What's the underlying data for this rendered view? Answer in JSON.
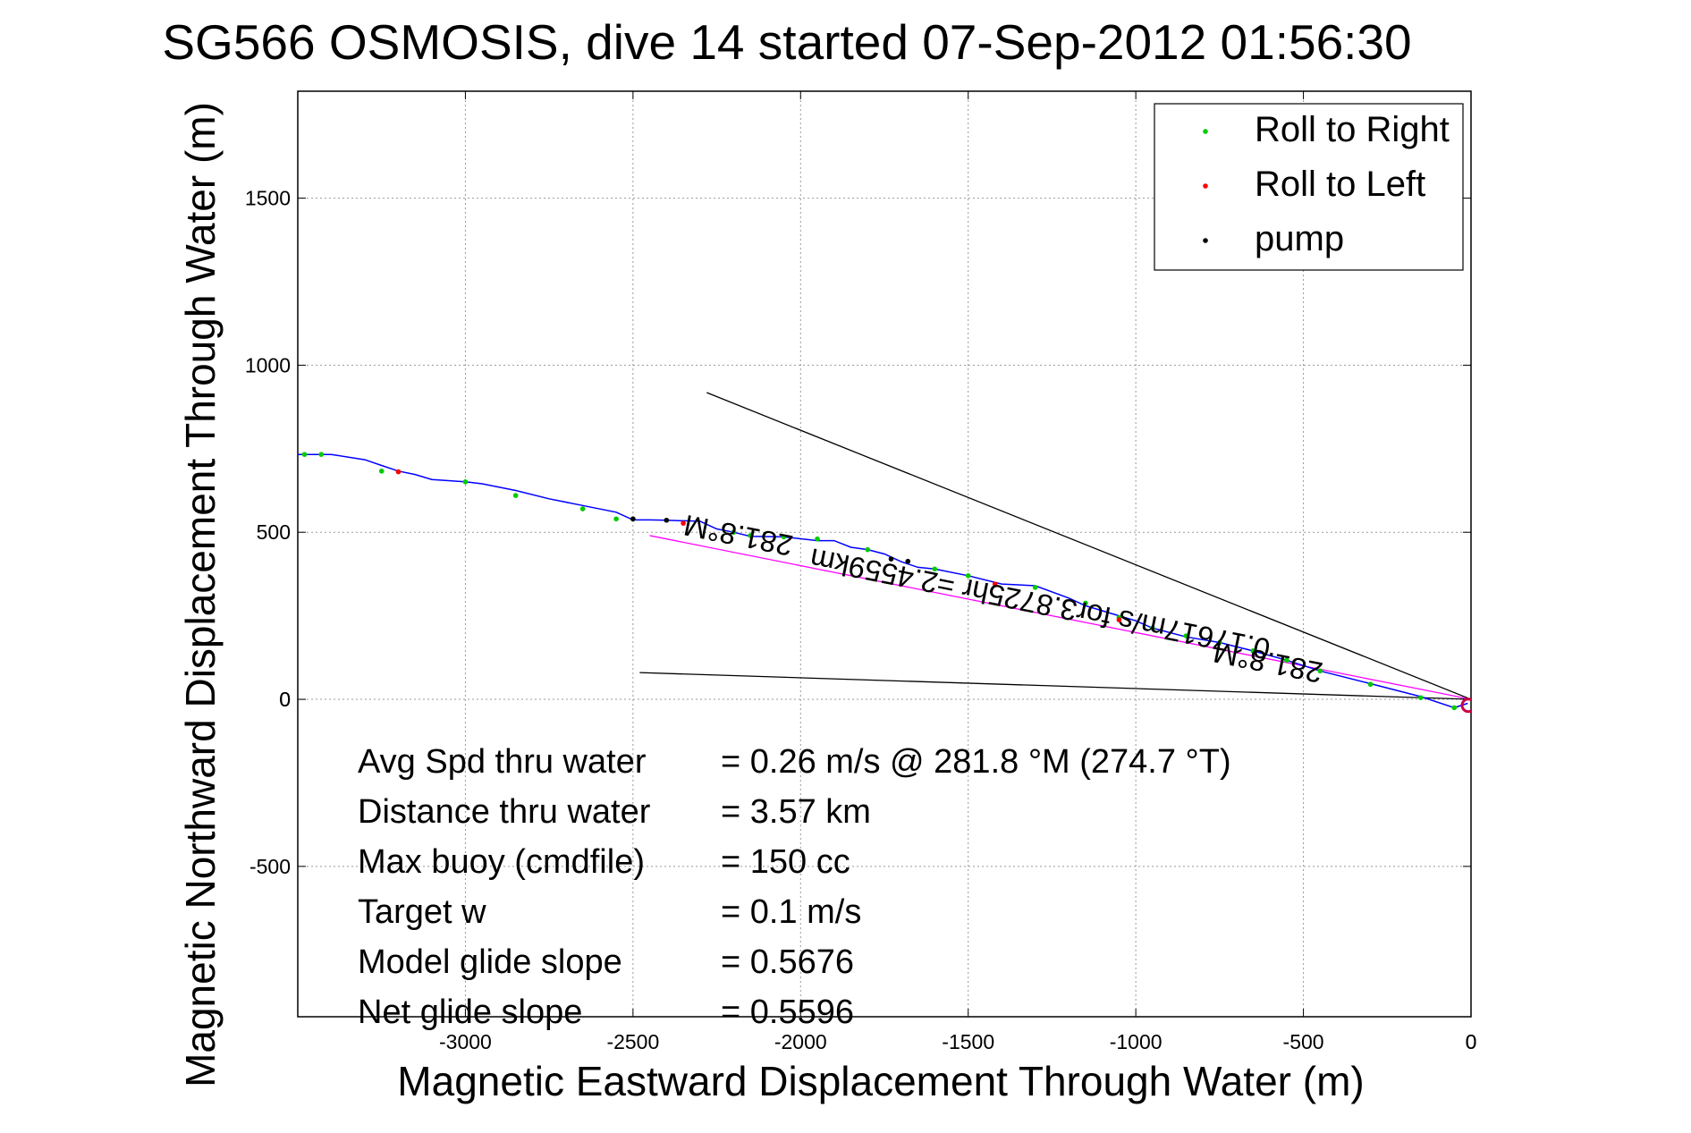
{
  "chart_data": {
    "type": "scatter",
    "title": "SG566 OSMOSIS, dive 14 started 07-Sep-2012 01:56:30",
    "xlabel": "Magnetic Eastward Displacement Through Water (m)",
    "ylabel": "Magnetic Northward Displacement Through Water (m)",
    "xlim": [
      -3500,
      0
    ],
    "ylim": [
      -950,
      1820
    ],
    "xticks": [
      -3000,
      -2500,
      -2000,
      -1500,
      -1000,
      -500,
      0
    ],
    "yticks": [
      -500,
      0,
      500,
      1000,
      1500
    ],
    "grid": true,
    "legend_position": "top-right",
    "legend": [
      "Roll to Right",
      "Roll to Left",
      "pump"
    ],
    "colors": {
      "track": "#0000ff",
      "roll_right": "#00cc00",
      "roll_left": "#ff0000",
      "pump": "#000000",
      "average_line": "#ff00ff",
      "end_marker": "#cc0044",
      "reference_lines": "#000000",
      "grid": "#999999"
    },
    "track": [
      [
        -3500,
        733
      ],
      [
        -3450,
        733
      ],
      [
        -3400,
        733
      ],
      [
        -3300,
        717
      ],
      [
        -3250,
        700
      ],
      [
        -3200,
        683
      ],
      [
        -3150,
        673
      ],
      [
        -3100,
        658
      ],
      [
        -3000,
        651
      ],
      [
        -2950,
        645
      ],
      [
        -2850,
        625
      ],
      [
        -2750,
        600
      ],
      [
        -2650,
        580
      ],
      [
        -2550,
        560
      ],
      [
        -2500,
        537
      ],
      [
        -2450,
        537
      ],
      [
        -2400,
        536
      ],
      [
        -2300,
        533
      ],
      [
        -2250,
        510
      ],
      [
        -2200,
        500
      ],
      [
        -2150,
        488
      ],
      [
        -2050,
        486
      ],
      [
        -1950,
        475
      ],
      [
        -1900,
        475
      ],
      [
        -1850,
        455
      ],
      [
        -1800,
        448
      ],
      [
        -1750,
        435
      ],
      [
        -1700,
        412
      ],
      [
        -1650,
        395
      ],
      [
        -1600,
        390
      ],
      [
        -1500,
        370
      ],
      [
        -1400,
        345
      ],
      [
        -1300,
        340
      ],
      [
        -1200,
        303
      ],
      [
        -1150,
        280
      ],
      [
        -1050,
        250
      ],
      [
        -1000,
        235
      ],
      [
        -950,
        213
      ],
      [
        -850,
        187
      ],
      [
        -750,
        170
      ],
      [
        -650,
        145
      ],
      [
        -550,
        117
      ],
      [
        -450,
        85
      ],
      [
        -300,
        47
      ],
      [
        -150,
        8
      ],
      [
        -50,
        -25
      ],
      [
        -10,
        -12
      ]
    ],
    "roll_right": [
      [
        -3480,
        733
      ],
      [
        -3430,
        733
      ],
      [
        -3250,
        683
      ],
      [
        -3000,
        651
      ],
      [
        -2850,
        610
      ],
      [
        -2650,
        570
      ],
      [
        -2550,
        540
      ],
      [
        -2500,
        540
      ],
      [
        -2200,
        500
      ],
      [
        -2150,
        490
      ],
      [
        -2050,
        486
      ],
      [
        -1950,
        480
      ],
      [
        -1800,
        448
      ],
      [
        -1600,
        390
      ],
      [
        -1500,
        370
      ],
      [
        -1300,
        335
      ],
      [
        -1150,
        288
      ],
      [
        -1050,
        245
      ],
      [
        -950,
        213
      ],
      [
        -850,
        190
      ],
      [
        -750,
        170
      ],
      [
        -650,
        145
      ],
      [
        -550,
        117
      ],
      [
        -450,
        85
      ],
      [
        -300,
        45
      ],
      [
        -150,
        5
      ],
      [
        -50,
        -25
      ]
    ],
    "roll_left": [
      [
        -3200,
        681
      ],
      [
        -2350,
        527
      ],
      [
        -1420,
        345
      ],
      [
        -1050,
        238
      ]
    ],
    "pump": [
      [
        -2500,
        540
      ],
      [
        -2400,
        536
      ],
      [
        -1730,
        420
      ],
      [
        -1680,
        413
      ]
    ],
    "end_marker": [
      -8,
      -18
    ],
    "lines": [
      {
        "name": "average",
        "from": [
          -2450,
          490
        ],
        "to": [
          0,
          0
        ]
      },
      {
        "name": "upper",
        "from": [
          -2280,
          918
        ],
        "to": [
          0,
          0
        ]
      },
      {
        "name": "lower",
        "from": [
          -2480,
          80
        ],
        "to": [
          0,
          0
        ]
      }
    ],
    "rotated_labels": [
      {
        "text": "281.8°M",
        "at": [
          -2180,
          520
        ]
      },
      {
        "text": "281.8°M",
        "at": [
          -600,
          140
        ]
      },
      {
        "text": "0.17617m/s for3.8725hr =2.4559km",
        "at": [
          -1280,
          315
        ]
      }
    ],
    "stats": [
      {
        "label": "Avg Spd thru water",
        "value": "=  0.26 m/s @ 281.8 °M (274.7 °T)"
      },
      {
        "label": "Distance thru water",
        "value": "=  3.57 km"
      },
      {
        "label": "Max buoy (cmdfile)",
        "value": "= 150 cc"
      },
      {
        "label": "Target w",
        "value": "= 0.1 m/s"
      },
      {
        "label": "Model glide slope",
        "value": "= 0.5676"
      },
      {
        "label": "Net glide slope",
        "value": "= 0.5596"
      }
    ]
  }
}
